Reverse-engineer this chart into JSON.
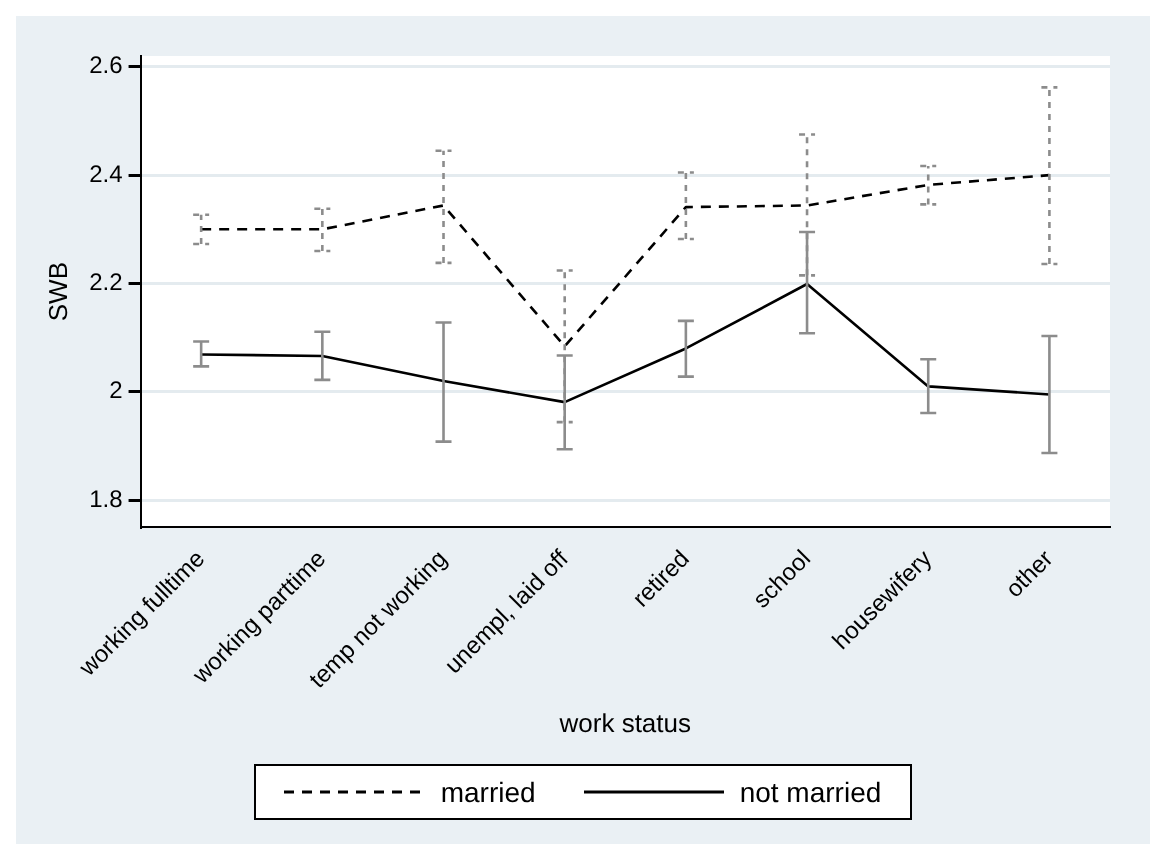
{
  "chart_data": {
    "type": "line",
    "xlabel": "work status",
    "ylabel": "SWB",
    "categories": [
      "working fulltime",
      "working parttime",
      "temp not working",
      "unempl, laid off",
      "retired",
      "school",
      "housewifery",
      "other"
    ],
    "ylim": [
      1.75,
      2.62
    ],
    "yticks": [
      1.8,
      2,
      2.2,
      2.4,
      2.6
    ],
    "grid": "y",
    "legend": "bottom",
    "marker": "none",
    "series": [
      {
        "name": "married",
        "color": "#000000",
        "line_style": "dashed",
        "values": [
          2.3,
          2.3,
          2.344,
          2.084,
          2.341,
          2.344,
          2.382,
          2.4
        ],
        "errors": [
          [
            2.273,
            2.327
          ],
          [
            2.26,
            2.338
          ],
          [
            2.238,
            2.445
          ],
          [
            1.944,
            2.224
          ],
          [
            2.282,
            2.405
          ],
          [
            2.215,
            2.475
          ],
          [
            2.346,
            2.417
          ],
          [
            2.236,
            2.562
          ]
        ]
      },
      {
        "name": "not married",
        "color": "#000000",
        "line_style": "solid",
        "values": [
          2.069,
          2.066,
          2.02,
          1.981,
          2.08,
          2.199,
          2.01,
          1.995
        ],
        "errors": [
          [
            2.047,
            2.093
          ],
          [
            2.022,
            2.111
          ],
          [
            1.908,
            2.128
          ],
          [
            1.894,
            2.067
          ],
          [
            2.028,
            2.131
          ],
          [
            2.108,
            2.295
          ],
          [
            1.961,
            2.06
          ],
          [
            1.887,
            2.103
          ]
        ]
      }
    ]
  }
}
